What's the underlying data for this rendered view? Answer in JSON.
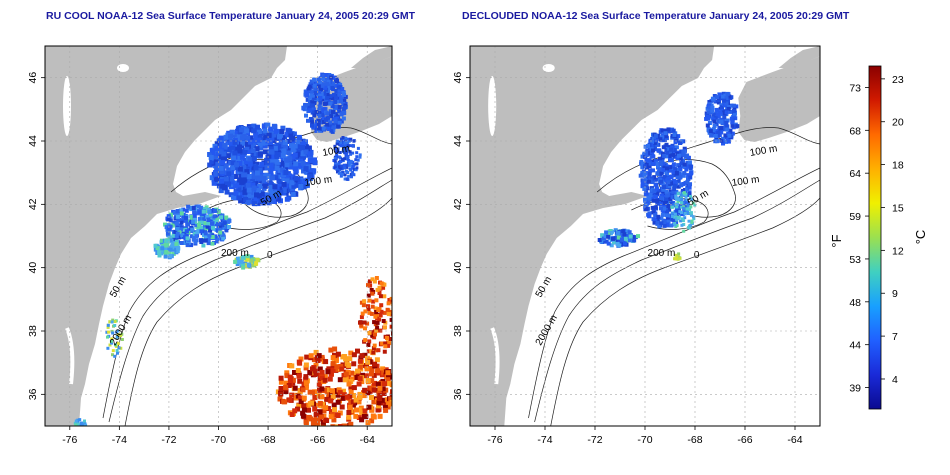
{
  "maps": [
    {
      "title": "RU COOL NOAA-12 Sea Surface Temperature January 24, 2005 20:29 GMT",
      "x_ticks": [
        "-76",
        "-74",
        "-72",
        "-70",
        "-68",
        "-66",
        "-64"
      ],
      "y_ticks": [
        "46",
        "44",
        "42",
        "40",
        "38",
        "36"
      ],
      "contour_labels": [
        "100 m",
        "100 m",
        "50 m",
        "200 m",
        "50 m",
        "2000 m",
        "0"
      ]
    },
    {
      "title": "DECLOUDED NOAA-12 Sea Surface Temperature January 24, 2005 20:29 GMT",
      "x_ticks": [
        "-76",
        "-74",
        "-72",
        "-70",
        "-68",
        "-66",
        "-64"
      ],
      "y_ticks": [
        "46",
        "44",
        "42",
        "40",
        "38",
        "36"
      ],
      "contour_labels": [
        "100 m",
        "100 m",
        "50 m",
        "200 m",
        "50 m",
        "2000 m",
        "0"
      ]
    }
  ],
  "colorbar": {
    "fahrenheit_ticks": [
      "73",
      "68",
      "64",
      "59",
      "53",
      "48",
      "44",
      "39"
    ],
    "celsius_ticks": [
      "23",
      "20",
      "18",
      "15",
      "12",
      "9",
      "7",
      "4"
    ],
    "fahrenheit_label": "°F",
    "celsius_label": "°C",
    "gradient_colors": [
      "#8b0000",
      "#d11a00",
      "#ff6a00",
      "#ffb000",
      "#f0f000",
      "#9be050",
      "#40d0c0",
      "#18a0ff",
      "#2060ff",
      "#1a2ad8",
      "#0a0a90"
    ]
  },
  "colors": {
    "land": "#bebebe",
    "water": "#ffffff",
    "title": "#1a1aa0",
    "sst_cold": "#1f4fe0",
    "sst_cool": "#3a8ef0",
    "sst_warm": "#d42a0a"
  }
}
